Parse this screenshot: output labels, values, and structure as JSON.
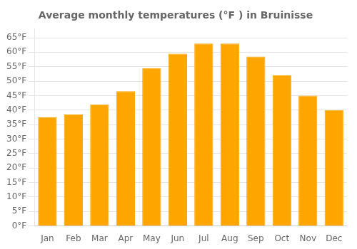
{
  "chart_data": {
    "type": "bar",
    "title": "Average monthly temperatures (°F ) in Bruinisse",
    "categories": [
      "Jan",
      "Feb",
      "Mar",
      "Apr",
      "May",
      "Jun",
      "Jul",
      "Aug",
      "Sep",
      "Oct",
      "Nov",
      "Dec"
    ],
    "values": [
      37.5,
      38.5,
      42.0,
      46.5,
      54.5,
      59.5,
      63.0,
      63.0,
      58.5,
      52.0,
      45.0,
      40.0
    ],
    "color": "#FFA500",
    "ylim": [
      0,
      68
    ],
    "yticks": [
      {
        "value": 0,
        "label": "0°F"
      },
      {
        "value": 5,
        "label": "5°F"
      },
      {
        "value": 10,
        "label": "10°F"
      },
      {
        "value": 15,
        "label": "15°F"
      },
      {
        "value": 20,
        "label": "20°F"
      },
      {
        "value": 25,
        "label": "25°F"
      },
      {
        "value": 30,
        "label": "30°F"
      },
      {
        "value": 35,
        "label": "35°F"
      },
      {
        "value": 40,
        "label": "40°F"
      },
      {
        "value": 45,
        "label": "45°F"
      },
      {
        "value": 50,
        "label": "50°F"
      },
      {
        "value": 55,
        "label": "55°F"
      },
      {
        "value": 60,
        "label": "60°F"
      },
      {
        "value": 65,
        "label": "65°F"
      }
    ],
    "grid": true
  }
}
